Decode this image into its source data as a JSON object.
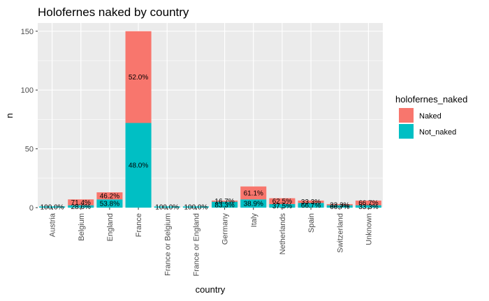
{
  "chart_data": {
    "type": "bar",
    "stacked": true,
    "title": "Holofernes naked by country",
    "xlabel": "country",
    "ylabel": "n",
    "ylim": [
      0,
      157
    ],
    "yticks": [
      0,
      50,
      100,
      150
    ],
    "categories": [
      "Austria",
      "Belgium",
      "England",
      "France",
      "France or Belgium",
      "France or England",
      "Germany",
      "Italy",
      "Netherlands",
      "Spain",
      "Switzerland",
      "Unknown"
    ],
    "series": [
      {
        "name": "Not_naked",
        "color": "#00BFC4",
        "values": [
          1,
          2,
          7,
          72,
          1,
          1,
          5,
          7,
          3,
          4,
          2,
          2
        ]
      },
      {
        "name": "Naked",
        "color": "#F8766D",
        "values": [
          0,
          5,
          6,
          78,
          0,
          0,
          1,
          11,
          5,
          2,
          1,
          4
        ]
      }
    ],
    "labels": [
      {
        "Not_naked": "100.0%",
        "Naked": null
      },
      {
        "Not_naked": "28.6%",
        "Naked": "71.4%"
      },
      {
        "Not_naked": "53.8%",
        "Naked": "46.2%"
      },
      {
        "Not_naked": "48.0%",
        "Naked": "52.0%"
      },
      {
        "Not_naked": "100.0%",
        "Naked": null
      },
      {
        "Not_naked": "100.0%",
        "Naked": null
      },
      {
        "Not_naked": "83.3%",
        "Naked": "16.7%"
      },
      {
        "Not_naked": "38.9%",
        "Naked": "61.1%"
      },
      {
        "Not_naked": "37.5%",
        "Naked": "62.5%"
      },
      {
        "Not_naked": "66.7%",
        "Naked": "33.3%"
      },
      {
        "Not_naked": "66.7%",
        "Naked": "33.3%"
      },
      {
        "Not_naked": "33.3%",
        "Naked": "66.7%"
      }
    ],
    "legend": {
      "title": "holofernes_naked",
      "position": "right",
      "entries": [
        {
          "label": "Naked",
          "color": "#F8766D"
        },
        {
          "label": "Not_naked",
          "color": "#00BFC4"
        }
      ]
    },
    "grid": true,
    "panel_background": "#EBEBEB"
  }
}
